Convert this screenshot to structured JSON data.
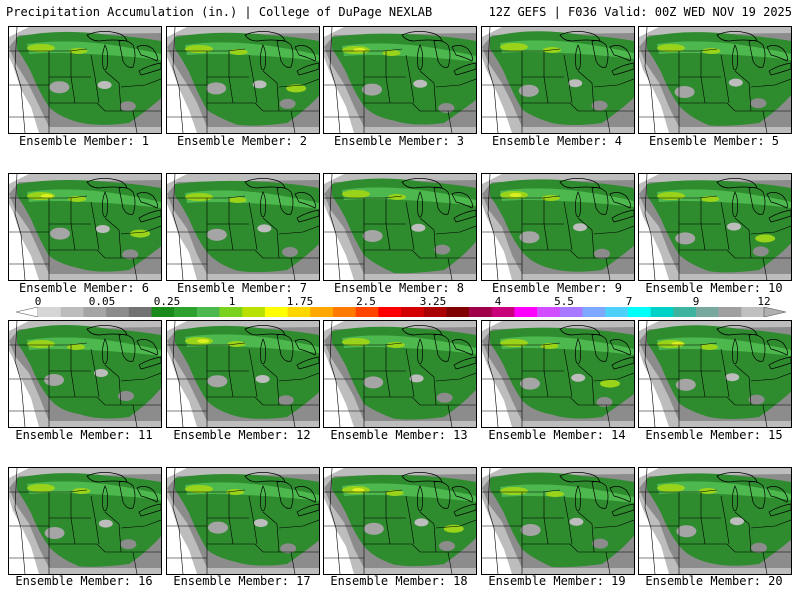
{
  "header": {
    "title": "Precipitation Accumulation (in.) | College of DuPage NEXLAB",
    "run_info": "12Z GEFS | F036 Valid: 00Z WED NOV 19 2025"
  },
  "colorbar": {
    "labels": [
      "0",
      "0.05",
      "0.25",
      "1",
      "1.75",
      "2.5",
      "3.25",
      "4",
      "5.5",
      "7",
      "9",
      "12"
    ],
    "colors": [
      "#d6d6d6",
      "#bdbdbd",
      "#a5a5a5",
      "#8c8c8c",
      "#737373",
      "#1a8a1a",
      "#2ea02e",
      "#4db84d",
      "#7bd21d",
      "#b8e000",
      "#ffff00",
      "#ffd700",
      "#ffa800",
      "#ff7a00",
      "#ff4400",
      "#ff0000",
      "#d40000",
      "#aa0000",
      "#800000",
      "#a0004a",
      "#c8007a",
      "#ff00ff",
      "#d24dff",
      "#a878ff",
      "#7fa8ff",
      "#4dd2ff",
      "#00ffff",
      "#00d2c8",
      "#3cb4a0",
      "#78a8a0",
      "#a0a0a0",
      "#c0c0c0"
    ]
  },
  "members": [
    {
      "label": "Ensemble Member: 1"
    },
    {
      "label": "Ensemble Member: 2"
    },
    {
      "label": "Ensemble Member: 3"
    },
    {
      "label": "Ensemble Member: 4"
    },
    {
      "label": "Ensemble Member: 5"
    },
    {
      "label": "Ensemble Member: 6"
    },
    {
      "label": "Ensemble Member: 7"
    },
    {
      "label": "Ensemble Member: 8"
    },
    {
      "label": "Ensemble Member: 9"
    },
    {
      "label": "Ensemble Member: 10"
    },
    {
      "label": "Ensemble Member: 11"
    },
    {
      "label": "Ensemble Member: 12"
    },
    {
      "label": "Ensemble Member: 13"
    },
    {
      "label": "Ensemble Member: 14"
    },
    {
      "label": "Ensemble Member: 15"
    },
    {
      "label": "Ensemble Member: 16"
    },
    {
      "label": "Ensemble Member: 17"
    },
    {
      "label": "Ensemble Member: 18"
    },
    {
      "label": "Ensemble Member: 19"
    },
    {
      "label": "Ensemble Member: 20"
    }
  ]
}
